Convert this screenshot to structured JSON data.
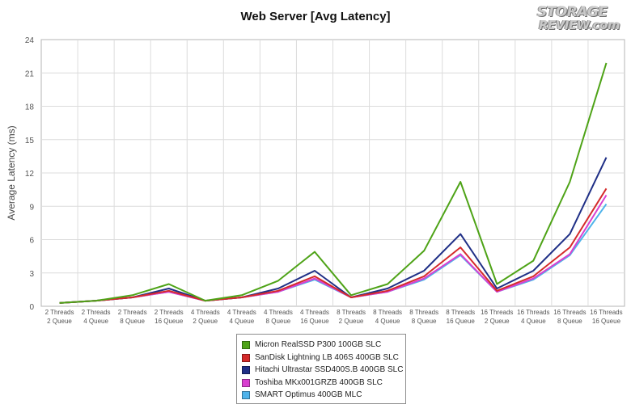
{
  "chart_data": {
    "type": "line",
    "title": "Web Server [Avg Latency]",
    "ylabel": "Average Latency (ms)",
    "xlabel": "",
    "ylim": [
      0,
      24
    ],
    "yticks": [
      0,
      3,
      6,
      9,
      12,
      15,
      18,
      21,
      24
    ],
    "grid": true,
    "legend_position": "bottom-center",
    "categories": [
      [
        "2 Threads",
        "2 Queue"
      ],
      [
        "2 Threads",
        "4 Queue"
      ],
      [
        "2 Threads",
        "8 Queue"
      ],
      [
        "2 Threads",
        "16 Queue"
      ],
      [
        "4 Threads",
        "2 Queue"
      ],
      [
        "4 Threads",
        "4 Queue"
      ],
      [
        "4 Threads",
        "8 Queue"
      ],
      [
        "4 Threads",
        "16 Queue"
      ],
      [
        "8 Threads",
        "2 Queue"
      ],
      [
        "8 Threads",
        "4 Queue"
      ],
      [
        "8 Threads",
        "8 Queue"
      ],
      [
        "8 Threads",
        "16 Queue"
      ],
      [
        "16 Threads",
        "2 Queue"
      ],
      [
        "16 Threads",
        "4 Queue"
      ],
      [
        "16 Threads",
        "8 Queue"
      ],
      [
        "16 Threads",
        "16 Queue"
      ]
    ],
    "series": [
      {
        "name": "Micron RealSSD P300 100GB SLC",
        "color": "#4ea317",
        "values": [
          0.3,
          0.5,
          1.0,
          2.0,
          0.5,
          1.0,
          2.3,
          4.9,
          1.0,
          2.0,
          5.0,
          11.2,
          2.0,
          4.1,
          11.2,
          21.9
        ]
      },
      {
        "name": "SanDisk Lightning LB 406S 400GB SLC",
        "color": "#d42a2a",
        "values": [
          0.3,
          0.5,
          0.8,
          1.4,
          0.5,
          0.8,
          1.4,
          2.7,
          0.8,
          1.4,
          2.7,
          5.3,
          1.4,
          2.7,
          5.3,
          10.6
        ]
      },
      {
        "name": "Hitachi Ultrastar SSD400S.B 400GB SLC",
        "color": "#1f2f86",
        "values": [
          0.3,
          0.5,
          0.8,
          1.6,
          0.5,
          0.8,
          1.6,
          3.2,
          0.8,
          1.6,
          3.2,
          6.5,
          1.6,
          3.2,
          6.5,
          13.4
        ]
      },
      {
        "name": "Toshiba MKx001GRZB 400GB SLC",
        "color": "#d93fd0",
        "values": [
          0.3,
          0.5,
          0.8,
          1.3,
          0.5,
          0.8,
          1.3,
          2.5,
          0.8,
          1.3,
          2.5,
          4.7,
          1.3,
          2.5,
          4.7,
          10.0
        ]
      },
      {
        "name": "SMART Optimus 400GB MLC",
        "color": "#4fb3ea",
        "values": [
          0.3,
          0.5,
          0.8,
          1.3,
          0.5,
          0.8,
          1.3,
          2.4,
          0.8,
          1.3,
          2.4,
          4.6,
          1.3,
          2.4,
          4.6,
          9.2
        ]
      }
    ]
  },
  "logo": {
    "line1": "STORAGE",
    "line2": "REVIEW.com"
  }
}
